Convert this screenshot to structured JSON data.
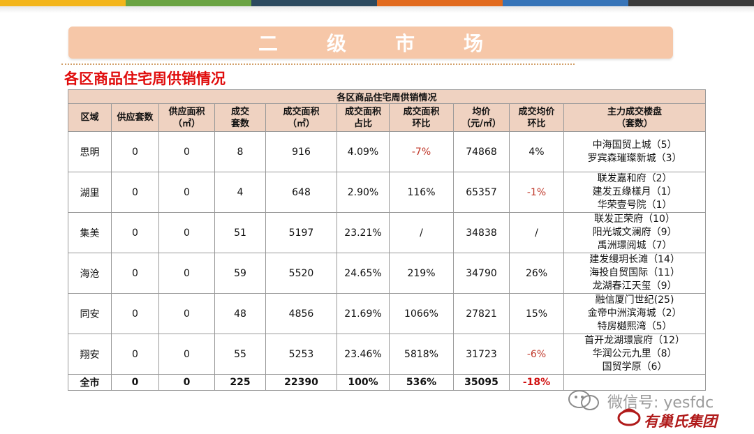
{
  "topbar_colors": [
    "#f3b51b",
    "#6aa342",
    "#2c4a5f",
    "#e16a1e",
    "#3774b8",
    "#3a3a3a"
  ],
  "banner": {
    "chars": [
      "二",
      "级",
      "市",
      "场"
    ],
    "color": "#f6c7a8"
  },
  "subtitle": "各区商品住宅周供销情况",
  "table": {
    "caption": "各区商品住宅周供销情况",
    "headers": [
      [
        "区域"
      ],
      [
        "供应套数"
      ],
      [
        "供应面积",
        "（㎡）"
      ],
      [
        "成交",
        "套数"
      ],
      [
        "成交面积",
        "（㎡）"
      ],
      [
        "成交面积",
        "占比"
      ],
      [
        "成交面积",
        "环比"
      ],
      [
        "均价",
        "（元/㎡）"
      ],
      [
        "成交均价",
        "环比"
      ],
      [
        "主力成交楼盘",
        "（套数）"
      ]
    ],
    "rows": [
      {
        "district": "思明",
        "supply_units": "0",
        "supply_area": "0",
        "deal_units": "8",
        "deal_area": "916",
        "share": "4.09%",
        "area_mom": "-7%",
        "avg_price": "74868",
        "price_mom": "4%",
        "projects": [
          "中海国贸上城（5）",
          "罗宾森璀璨新城（3）"
        ]
      },
      {
        "district": "湖里",
        "supply_units": "0",
        "supply_area": "0",
        "deal_units": "4",
        "deal_area": "648",
        "share": "2.90%",
        "area_mom": "116%",
        "avg_price": "65357",
        "price_mom": "-1%",
        "projects": [
          "联发嘉和府（2）",
          "建发五缘樣月（1）",
          "华荣壹号院（1）"
        ]
      },
      {
        "district": "集美",
        "supply_units": "0",
        "supply_area": "0",
        "deal_units": "51",
        "deal_area": "5197",
        "share": "23.21%",
        "area_mom": "/",
        "avg_price": "34838",
        "price_mom": "/",
        "projects": [
          "联发正荣府（10）",
          "阳光城文澜府（9）",
          "禹洲璟阅城（7）"
        ]
      },
      {
        "district": "海沧",
        "supply_units": "0",
        "supply_area": "0",
        "deal_units": "59",
        "deal_area": "5520",
        "share": "24.65%",
        "area_mom": "219%",
        "avg_price": "34790",
        "price_mom": "26%",
        "projects": [
          "建发缦玥长滩（14）",
          "海投自贸国际（11）",
          "龙湖春江天玺（9）"
        ]
      },
      {
        "district": "同安",
        "supply_units": "0",
        "supply_area": "0",
        "deal_units": "48",
        "deal_area": "4856",
        "share": "21.69%",
        "area_mom": "1066%",
        "avg_price": "27821",
        "price_mom": "15%",
        "projects": [
          "融信厦门世纪(25)",
          "金帝中洲滨海城（2）",
          "特房樾熙湾（5）"
        ]
      },
      {
        "district": "翔安",
        "supply_units": "0",
        "supply_area": "0",
        "deal_units": "55",
        "deal_area": "5253",
        "share": "23.46%",
        "area_mom": "5818%",
        "avg_price": "31723",
        "price_mom": "-6%",
        "projects": [
          "首开龙湖璟宸府（12）",
          "华润公元九里（8）",
          "国贸学原（6）"
        ]
      }
    ],
    "total": {
      "district": "全市",
      "supply_units": "0",
      "supply_area": "0",
      "deal_units": "225",
      "deal_area": "22390",
      "share": "100%",
      "area_mom": "536%",
      "avg_price": "35095",
      "price_mom": "-18%"
    }
  },
  "watermark": {
    "text": "微信号: yesfdc",
    "brand": "有巢氏集团"
  }
}
